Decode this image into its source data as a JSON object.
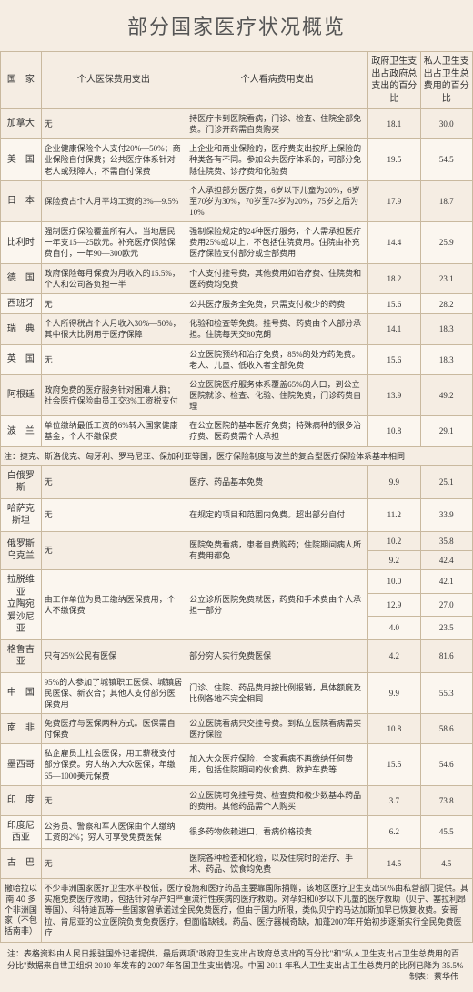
{
  "title": "部分国家医疗状况概览",
  "headers": {
    "country": "国　家",
    "insurance": "个人医保费用支出",
    "visit": "个人看病费用支出",
    "gov": "政府卫生支出占政府总支出的百分比",
    "priv": "私人卫生支出占卫生总费用的百分比"
  },
  "rows_a": [
    {
      "country": "加拿大",
      "ins": "无",
      "visit": "持医疗卡到医院看病，门诊、检查、住院全部免费。门诊开药需自费购买",
      "gov": "18.1",
      "priv": "30.0"
    },
    {
      "country": "美　国",
      "ins": "企业健康保险个人支付20%—50%；商业保险自付保费；公共医疗体系针对老人或残障人，不需自付保费",
      "visit": "上企业和商业保险的，医疗费支出按所上保险的种类各有不同。参加公共医疗体系的，可部分免除住院费、诊疗费和化验费",
      "gov": "19.5",
      "priv": "54.5"
    },
    {
      "country": "日　本",
      "ins": "保险费占个人月平均工资的3%—9.5%",
      "visit": "个人承担部分医疗费，6岁以下儿童为20%，6岁至70岁为30%，70岁至74岁为20%，75岁之后为10%",
      "gov": "17.9",
      "priv": "18.7"
    },
    {
      "country": "比利时",
      "ins": "强制医疗保险覆盖所有人。当地居民一年支15—25欧元。补充医疗保险保费自付，一年90—300欧元",
      "visit": "强制保险规定的24种医疗服务，个人需承担医疗费用25%或以上，不包括住院费用。住院由补充医疗保险支付部分或全部费用",
      "gov": "14.4",
      "priv": "25.9"
    },
    {
      "country": "德　国",
      "ins": "政府保险每月保费为月收入的15.5%，个人和公司各负担一半",
      "visit": "个人支付挂号费，其他费用如治疗费、住院费和医药费均免费",
      "gov": "18.2",
      "priv": "23.1"
    },
    {
      "country": "西班牙",
      "ins": "无",
      "visit": "公共医疗服务全免费，只需支付极少的药费",
      "gov": "15.6",
      "priv": "28.2"
    },
    {
      "country": "瑞　典",
      "ins": "个人所得税占个人月收入30%—50%，其中很大比例用于医疗保障",
      "visit": "化验和检查等免费。挂号费、药费由个人部分承担。住院每天交80克朗",
      "gov": "14.1",
      "priv": "18.3"
    },
    {
      "country": "英　国",
      "ins": "无",
      "visit": "公立医院预约和治疗免费，85%的处方药免费。老人、儿童、低收入者全部免费",
      "gov": "15.6",
      "priv": "18.3"
    },
    {
      "country": "阿根廷",
      "ins": "政府免费的医疗服务针对困难人群；社会医疗保险由员工交3%工资税支付",
      "visit": "公立医院医疗服务体系覆盖65%的人口，到公立医院就诊、检查、化验、住院免费，门诊药费自理",
      "gov": "13.9",
      "priv": "49.2"
    },
    {
      "country": "波　兰",
      "ins": "单位缴纳最低工资的6%转入国家健康基金，个人不缴保费",
      "visit": "在公立医院的基本医疗免费；特殊病种的很多治疗费、医药费需个人承担",
      "gov": "10.8",
      "priv": "29.1"
    }
  ],
  "note_mid": "注：捷克、斯洛伐克、匈牙利、罗马尼亚、保加利亚等国，医疗保险制度与波兰的复合型医疗保险体系基本相同",
  "rows_b": [
    {
      "country": "白俄罗斯",
      "ins": "无",
      "visit": "医疗、药品基本免费",
      "gov": "9.9",
      "priv": "25.1"
    },
    {
      "country": "哈萨克斯坦",
      "ins": "无",
      "visit": "在规定的项目和范围内免费。超出部分自付",
      "gov": "11.2",
      "priv": "33.9"
    }
  ],
  "row_russia_ukraine": {
    "label": "俄罗斯\n乌克兰",
    "ins": "无",
    "visit": "医院免费看病，患者自费购药；住院期间病人所有费用都免",
    "r": [
      {
        "gov": "10.2",
        "priv": "35.8"
      },
      {
        "gov": "9.2",
        "priv": "42.4"
      }
    ]
  },
  "row_three": {
    "labels": [
      "拉脱维亚",
      "立陶宛",
      "爱沙尼亚"
    ],
    "ins": "由工作单位为员工缴纳医保费用，个人不缴保费",
    "visit": "公立诊所医院免费就医，药费和手术费由个人承担一部分",
    "r": [
      {
        "gov": "10.0",
        "priv": "42.1"
      },
      {
        "gov": "12.9",
        "priv": "27.0"
      },
      {
        "gov": "4.0",
        "priv": "23.5"
      }
    ]
  },
  "rows_c": [
    {
      "country": "格鲁吉亚",
      "ins": "只有25%公民有医保",
      "visit": "部分穷人实行免费医保",
      "gov": "4.2",
      "priv": "81.6"
    },
    {
      "country": "中　国",
      "ins": "95%的人参加了城镇职工医保、城镇居民医保、新农合；其他人支付部分医保费用",
      "visit": "门诊、住院、药品费用按比例报销，具体额度及比例各地不完全相同",
      "gov": "9.9",
      "priv": "55.3"
    },
    {
      "country": "南　非",
      "ins": "免费医疗与医保两种方式。医保需自付保费",
      "visit": "公立医院看病只交挂号费。到私立医院看病需买医疗保险",
      "gov": "10.8",
      "priv": "58.6"
    },
    {
      "country": "墨西哥",
      "ins": "私企雇员上社会医保，用工薪税支付部分保费。穷人纳入大众医保，年缴65—1000美元保费",
      "visit": "加入大众医疗保险，全家看病不再缴纳任何费用，包括住院期间的伙食费、救护车费等",
      "gov": "15.5",
      "priv": "54.6"
    },
    {
      "country": "印　度",
      "ins": "无",
      "visit": "公立医院可免挂号费、检查费和极少数基本药品的费用。其他药品需个人购买",
      "gov": "3.7",
      "priv": "73.8"
    },
    {
      "country": "印度尼西亚",
      "ins": "公务员、警察和军人医保由个人缴纳工资的2%；穷人可享受免费医保",
      "visit": "很多药物依赖进口，看病价格较贵",
      "gov": "6.2",
      "priv": "45.5"
    },
    {
      "country": "古　巴",
      "ins": "无",
      "visit": "医院各种检查和化验，以及住院时的治疗、手术、药品、饮食均免费",
      "gov": "14.5",
      "priv": "4.5"
    }
  ],
  "africa": {
    "label": "撒哈拉以南 40 多个非洲国家（不包括南非）",
    "text": "不少非洲国家医疗卫生水平极低，医疗设施和医疗药品主要靠国际捐赠，该地区医疗卫生支出50%由私营部门提供。其实施免费医疗救助，包括针对孕产妇严重流行性疾病的医疗救助。对孕妇和0岁以下儿童的医疗救助（贝宁、塞拉利昂等国）、科特迪瓦等一些国家曾承诺过全民免费医疗，但由于国力所限，类似贝宁的马达加斯加早已恢复收费。安哥拉、肯尼亚的公立医院负责免费医疗。但面临缺钱。药品、医疗器械奇缺，加蓬2007年开始初步逐渐实行全民免费医疗"
  },
  "footnote": "注：表格资料由人民日报驻国外记者提供，最后两项\"政府卫生支出占政府总支出的百分比\"和\"私人卫生支出占卫生总费用的百分比\"数据来自世卫组织 2010 年发布的 2007 年各国卫生支出情况。中国 2011 年私人卫生支出占卫生总费用的比例已降为 35.5%",
  "credit": "制表：蔡华伟"
}
